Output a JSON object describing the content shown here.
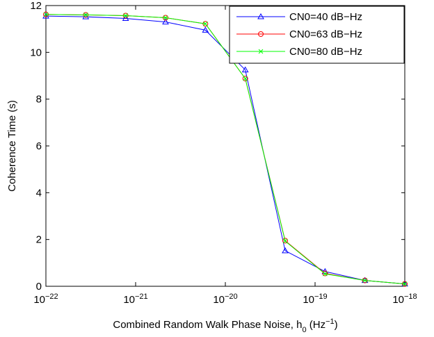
{
  "chart_data": {
    "type": "line",
    "xlabel": "Combined Random Walk Phase Noise, h0 (Hz−1)",
    "ylabel": "Coherence Time (s)",
    "xscale": "log",
    "x": [
      1e-22,
      2.78e-22,
      7.74e-22,
      2.154e-21,
      5.995e-21,
      1.668e-20,
      4.642e-20,
      1.292e-19,
      3.594e-19,
      1e-18
    ],
    "series": [
      {
        "name": "CN0=40 dB−Hz",
        "color": "#0000ff",
        "marker": "triangle",
        "values": [
          11.55,
          11.52,
          11.45,
          11.3,
          10.95,
          9.25,
          1.52,
          0.63,
          0.25,
          0.1
        ]
      },
      {
        "name": "CN0=63 dB−Hz",
        "color": "#ff0000",
        "marker": "circle",
        "values": [
          11.62,
          11.6,
          11.57,
          11.48,
          11.22,
          8.88,
          1.95,
          0.55,
          0.25,
          0.1
        ]
      },
      {
        "name": "CN0=80 dB−Hz",
        "color": "#00ff00",
        "marker": "x",
        "values": [
          11.62,
          11.6,
          11.57,
          11.48,
          11.22,
          8.88,
          1.93,
          0.53,
          0.25,
          0.1
        ]
      }
    ],
    "xlim": [
      1e-22,
      1e-18
    ],
    "xticks": [
      {
        "value": 1e-22,
        "label": "10−22"
      },
      {
        "value": 1e-21,
        "label": "10−21"
      },
      {
        "value": 1e-20,
        "label": "10−20"
      },
      {
        "value": 1e-19,
        "label": "10−19"
      },
      {
        "value": 1e-18,
        "label": "10−18"
      }
    ],
    "ylim": [
      0,
      12
    ],
    "yticks": [
      0,
      2,
      4,
      6,
      8,
      10,
      12
    ],
    "grid": false,
    "legend": "top-right"
  }
}
